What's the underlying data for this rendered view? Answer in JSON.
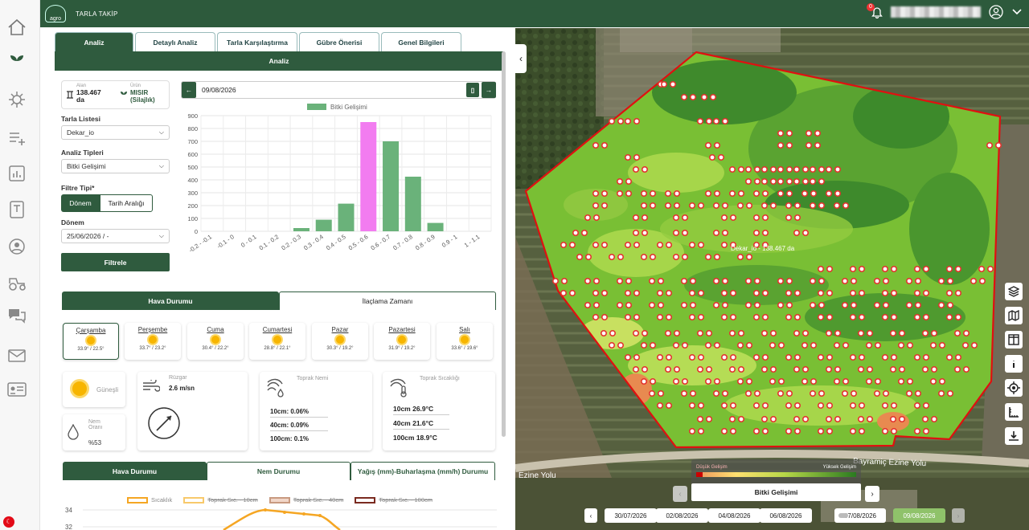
{
  "app": {
    "title": "TARLA TAKİP",
    "notification_count": "0"
  },
  "tabs": [
    "Analiz",
    "Detaylı Analiz",
    "Tarla Karşılaştırma",
    "Gübre Önerisi",
    "Genel Bilgileri"
  ],
  "analysis_header": "Analiz",
  "field_info": {
    "area_label": "Alan",
    "area_value": "138.467 da",
    "crop_label": "Ürün",
    "crop_value": "MISIR (Silajlık)"
  },
  "filters": {
    "field_list_label": "Tarla Listesi",
    "field_list_value": "Dekar_io",
    "analysis_type_label": "Analiz Tipleri",
    "analysis_type_value": "Bitki Gelişimi",
    "filter_type_label": "Filtre Tipi*",
    "filter_type_options": [
      "Dönem",
      "Tarih Aralığı"
    ],
    "period_label": "Dönem",
    "period_value": "25/06/2026 / -",
    "filter_button": "Filtrele"
  },
  "date_nav": {
    "date": "09/08/2026"
  },
  "chart_data": {
    "type": "bar",
    "legend": "Bitki Gelişimi",
    "categories": [
      "-0.2 - -0.1",
      "-0.1 - 0",
      "0 - 0.1",
      "0.1 - 0.2",
      "0.2 - 0.3",
      "0.3 - 0.4",
      "0.4 - 0.5",
      "0.5 - 0.6",
      "0.6 - 0.7",
      "0.7 - 0.8",
      "0.8 - 0.9",
      "0.9 - 1",
      "1 - 1.1"
    ],
    "values": [
      0,
      0,
      0,
      0,
      25,
      90,
      215,
      850,
      700,
      425,
      65,
      0,
      0
    ],
    "highlight_index": 7,
    "colors": {
      "bar": "#6ab27a",
      "highlight": "#f27cf0"
    },
    "yticks": [
      0,
      100,
      200,
      300,
      400,
      500,
      600,
      700,
      800,
      900
    ],
    "ylim": [
      0,
      900
    ]
  },
  "weather_tabs": [
    "Hava Durumu",
    "İlaçlama Zamanı"
  ],
  "forecast": [
    {
      "day": "Çarşamba",
      "temp": "33.9° / 22.5°"
    },
    {
      "day": "Perşembe",
      "temp": "33.7° / 23.2°"
    },
    {
      "day": "Cuma",
      "temp": "30.4° / 22.2°"
    },
    {
      "day": "Cumartesi",
      "temp": "28.8° / 22.1°"
    },
    {
      "day": "Pazar",
      "temp": "30.3° / 19.2°"
    },
    {
      "day": "Pazartesi",
      "temp": "31.9° / 19.2°"
    },
    {
      "day": "Salı",
      "temp": "33.6° / 19.6°"
    }
  ],
  "conditions": {
    "sky": "Güneşli",
    "wind_label": "Rüzgar",
    "wind_value": "2.6 m/sn",
    "humidity_label": "Nem Oranı",
    "humidity_value": "%53",
    "soil_moisture_label": "Toprak Nemi",
    "soil_moisture": [
      "10cm: 0.06%",
      "40cm: 0.09%",
      "100cm: 0.1%"
    ],
    "soil_temp_label": "Toprak Sıcaklığı",
    "soil_temp": [
      "10cm 26.9°C",
      "40cm 21.6°C",
      "100cm 18.9°C"
    ]
  },
  "bottom_tabs": [
    "Hava Durumu",
    "Nem Durumu",
    "Yağış (mm)-Buharlaşma (mm/h) Durumu"
  ],
  "line_legend": [
    "Sıcaklık",
    "Toprak Sıc. - 10cm",
    "Toprak Sıc. - 40cm",
    "Toprak Sıc. - 100cm"
  ],
  "line_yticks": [
    "34",
    "32"
  ],
  "map": {
    "field_label": "Dekar_io - 138.467 da",
    "road_label": "Bayramiç Ezine Yolu",
    "road_label_left": "Ezine Yolu",
    "legend_low": "Düşük Gelişim",
    "legend_high": "Yüksek Gelişim",
    "layer_name": "Bitki Gelişimi",
    "dates": [
      "30/07/2026",
      "02/08/2026",
      "04/08/2026",
      "06/08/2026",
      "07/08/2026",
      "09/08/2026"
    ],
    "active_date_index": 5
  }
}
